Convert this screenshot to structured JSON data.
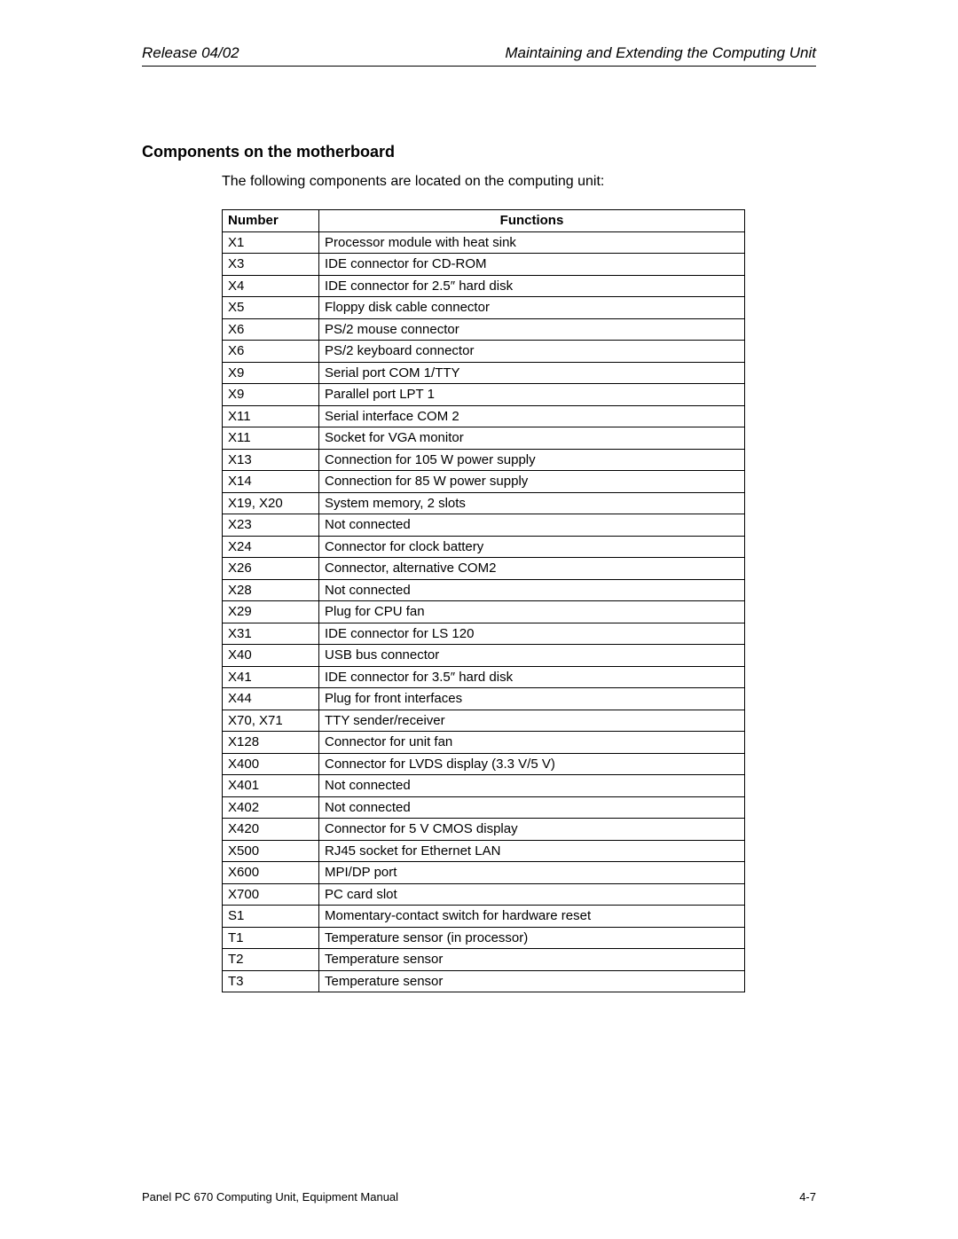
{
  "header": {
    "left": "Release 04/02",
    "right": "Maintaining and Extending the Computing Unit"
  },
  "section": {
    "heading": "Components on the motherboard",
    "intro": "The following components are located on the computing unit:"
  },
  "table": {
    "columns": [
      "Number",
      "Functions"
    ],
    "rows": [
      [
        "X1",
        "Processor module with heat sink"
      ],
      [
        "X3",
        "IDE connector for CD-ROM"
      ],
      [
        "X4",
        "IDE connector for 2.5″ hard disk"
      ],
      [
        "X5",
        "Floppy disk cable connector"
      ],
      [
        "X6",
        "PS/2 mouse connector"
      ],
      [
        "X6",
        "PS/2 keyboard connector"
      ],
      [
        "X9",
        "Serial port COM 1/TTY"
      ],
      [
        "X9",
        "Parallel port LPT 1"
      ],
      [
        "X11",
        "Serial interface COM 2"
      ],
      [
        "X11",
        "Socket for VGA monitor"
      ],
      [
        "X13",
        "Connection for 105 W power supply"
      ],
      [
        "X14",
        "Connection for 85 W power supply"
      ],
      [
        "X19, X20",
        "System memory, 2 slots"
      ],
      [
        "X23",
        "Not connected"
      ],
      [
        "X24",
        "Connector for clock battery"
      ],
      [
        "X26",
        "Connector, alternative COM2"
      ],
      [
        "X28",
        "Not connected"
      ],
      [
        "X29",
        "Plug for CPU fan"
      ],
      [
        "X31",
        "IDE connector for LS 120"
      ],
      [
        "X40",
        "USB bus connector"
      ],
      [
        "X41",
        "IDE connector for 3.5″ hard disk"
      ],
      [
        "X44",
        "Plug for front interfaces"
      ],
      [
        "X70, X71",
        "TTY sender/receiver"
      ],
      [
        "X128",
        "Connector for unit fan"
      ],
      [
        "X400",
        "Connector for LVDS display (3.3 V/5 V)"
      ],
      [
        "X401",
        "Not connected"
      ],
      [
        "X402",
        "Not connected"
      ],
      [
        "X420",
        "Connector for 5 V CMOS display"
      ],
      [
        "X500",
        "RJ45 socket for Ethernet LAN"
      ],
      [
        "X600",
        "MPI/DP port"
      ],
      [
        "X700",
        "PC card slot"
      ],
      [
        "S1",
        "Momentary-contact switch for hardware reset"
      ],
      [
        "T1",
        "Temperature sensor (in processor)"
      ],
      [
        "T2",
        "Temperature sensor"
      ],
      [
        "T3",
        "Temperature sensor"
      ]
    ]
  },
  "footer": {
    "left": "Panel PC 670 Computing Unit, Equipment Manual",
    "right": "4-7"
  }
}
